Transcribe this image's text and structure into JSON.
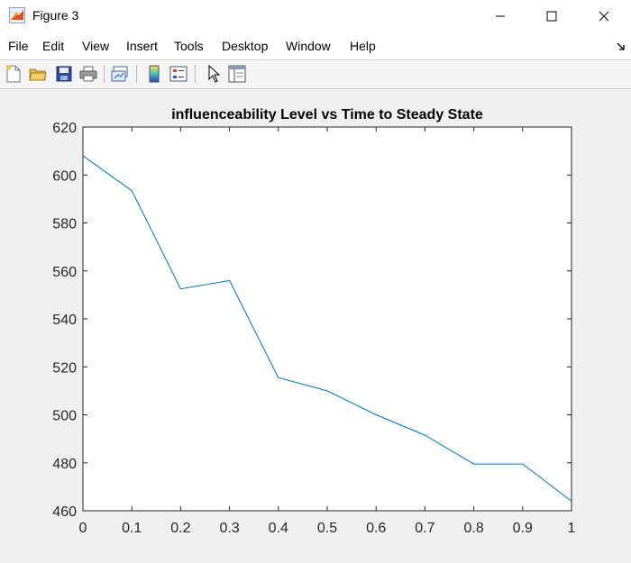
{
  "window": {
    "title": "Figure 3",
    "icon": "matlab-figure-icon"
  },
  "menu": {
    "items": [
      "File",
      "Edit",
      "View",
      "Insert",
      "Tools",
      "Desktop",
      "Window",
      "Help"
    ]
  },
  "toolbar": {
    "buttons": [
      "new-figure-icon",
      "open-file-icon",
      "save-icon",
      "print-icon",
      "link-plot-icon",
      "colorbar-icon",
      "legend-icon",
      "pointer-icon",
      "property-inspector-icon"
    ]
  },
  "colors": {
    "line": "#0072BD",
    "axes_bg": "#ffffff",
    "figure_bg": "#f0f0f0"
  },
  "chart_data": {
    "type": "line",
    "title": "influenceability Level vs Time to Steady State",
    "xlabel": "",
    "ylabel": "",
    "x": [
      0,
      0.1,
      0.2,
      0.3,
      0.4,
      0.5,
      0.6,
      0.7,
      0.8,
      0.9,
      1
    ],
    "series": [
      {
        "values": [
          608,
          593.5,
          552.5,
          556,
          515.5,
          510,
          500,
          491.5,
          479.5,
          479.5,
          464
        ]
      }
    ],
    "xlim": [
      0,
      1
    ],
    "ylim": [
      460,
      620
    ],
    "xticks": [
      "0",
      "0.1",
      "0.2",
      "0.3",
      "0.4",
      "0.5",
      "0.6",
      "0.7",
      "0.8",
      "0.9",
      "1"
    ],
    "yticks": [
      "460",
      "480",
      "500",
      "520",
      "540",
      "560",
      "580",
      "600",
      "620"
    ],
    "grid": false
  }
}
